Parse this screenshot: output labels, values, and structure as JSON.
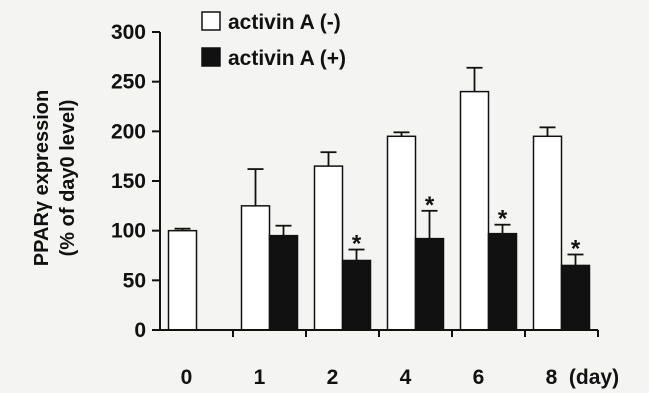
{
  "chart_data": {
    "type": "bar",
    "categories": [
      "0",
      "1",
      "2",
      "4",
      "6",
      "8"
    ],
    "x_unit": "(day)",
    "ylabel_line1": "PPARγ expression",
    "ylabel_line2": "(% of day0 level)",
    "ylim": [
      0,
      300
    ],
    "yticks": [
      0,
      50,
      100,
      150,
      200,
      250,
      300
    ],
    "legend_position": "top-center",
    "series": [
      {
        "name": "activin A (-)",
        "color": "#ffffff",
        "values": [
          100,
          125,
          165,
          195,
          240,
          195
        ],
        "errors": [
          2,
          37,
          14,
          4,
          24,
          9
        ]
      },
      {
        "name": "activin A (+)",
        "color": "#111111",
        "values": [
          null,
          95,
          70,
          92,
          97,
          65
        ],
        "errors": [
          null,
          10,
          11,
          28,
          9,
          11
        ],
        "significance": [
          null,
          "",
          "*",
          "*",
          "*",
          "*"
        ]
      }
    ]
  }
}
